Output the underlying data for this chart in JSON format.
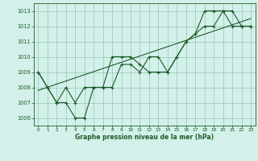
{
  "title": "Graphe pression niveau de la mer (hPa)",
  "background_color": "#d4f0ea",
  "grid_color": "#a0ccbe",
  "line_color": "#1a5c28",
  "xlim": [
    -0.5,
    23.5
  ],
  "ylim": [
    1005.5,
    1013.5
  ],
  "yticks": [
    1006,
    1007,
    1008,
    1009,
    1010,
    1011,
    1012,
    1013
  ],
  "xticks": [
    0,
    1,
    2,
    3,
    4,
    5,
    6,
    7,
    8,
    9,
    10,
    11,
    12,
    13,
    14,
    15,
    16,
    17,
    18,
    19,
    20,
    21,
    22,
    23
  ],
  "series1_x": [
    0,
    1,
    2,
    3,
    4,
    5,
    6,
    7,
    8,
    9,
    10,
    11,
    12,
    13,
    14,
    15,
    16,
    17,
    18,
    19,
    20,
    21,
    22,
    23
  ],
  "series1_y": [
    1009,
    1008,
    1007,
    1007,
    1006,
    1006,
    1008,
    1008,
    1010,
    1010,
    1010,
    1009.5,
    1009,
    1009,
    1009,
    1010,
    1011,
    1011.5,
    1013,
    1013,
    1013,
    1012,
    1012,
    1012
  ],
  "series2_x": [
    0,
    1,
    2,
    3,
    4,
    5,
    6,
    7,
    8,
    9,
    10,
    11,
    12,
    13,
    14,
    15,
    16,
    17,
    18,
    19,
    20,
    21,
    22,
    23
  ],
  "series2_y": [
    1009,
    1008,
    1007,
    1008,
    1007,
    1008,
    1008,
    1008,
    1008,
    1009.5,
    1009.5,
    1009,
    1010,
    1010,
    1009,
    1010,
    1011,
    1011.5,
    1012,
    1012,
    1013,
    1013,
    1012,
    1012
  ],
  "trend_x": [
    0,
    23
  ],
  "trend_y": [
    1007.8,
    1012.5
  ]
}
